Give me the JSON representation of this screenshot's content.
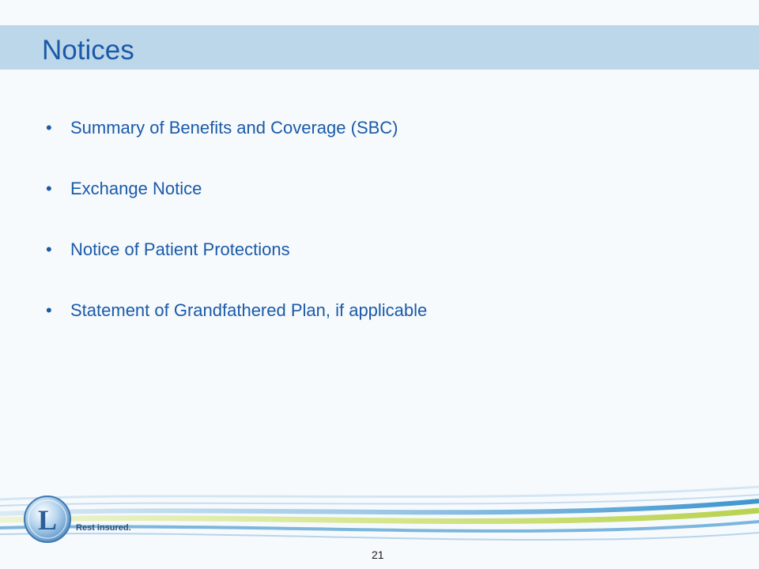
{
  "slide": {
    "title": "Notices",
    "bullets": [
      "Summary of Benefits and Coverage (SBC)",
      "Exchange Notice",
      "Notice of Patient Protections",
      "Statement of Grandfathered Plan, if applicable"
    ],
    "bullet_glyph": "•",
    "page_number": "21"
  },
  "branding": {
    "logo_letter": "L",
    "tagline": "Rest insured."
  },
  "colors": {
    "title_text": "#1b5aa8",
    "title_bar": "#bcd6ea",
    "background": "#f6fafd",
    "swoosh_green": "#c7dc6a",
    "swoosh_blue": "#5aa7d6"
  }
}
